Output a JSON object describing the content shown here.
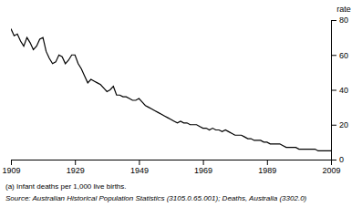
{
  "chart_data": {
    "type": "line",
    "ylabel": "rate",
    "annotations": [
      "(a) Infant deaths per 1,000 live births.",
      "Source: Australian Historical Population Statistics (3105.0.65.001); Deaths, Australia (3302.0)"
    ],
    "x": [
      1909,
      1910,
      1911,
      1912,
      1913,
      1914,
      1915,
      1916,
      1917,
      1918,
      1919,
      1920,
      1921,
      1922,
      1923,
      1924,
      1925,
      1926,
      1927,
      1928,
      1929,
      1930,
      1931,
      1932,
      1933,
      1934,
      1935,
      1936,
      1937,
      1938,
      1939,
      1940,
      1941,
      1942,
      1943,
      1944,
      1945,
      1946,
      1947,
      1948,
      1949,
      1950,
      1951,
      1952,
      1953,
      1954,
      1955,
      1956,
      1957,
      1958,
      1959,
      1960,
      1961,
      1962,
      1963,
      1964,
      1965,
      1966,
      1967,
      1968,
      1969,
      1970,
      1971,
      1972,
      1973,
      1974,
      1975,
      1976,
      1977,
      1978,
      1979,
      1980,
      1981,
      1982,
      1983,
      1984,
      1985,
      1986,
      1987,
      1988,
      1989,
      1990,
      1991,
      1992,
      1993,
      1994,
      1995,
      1996,
      1997,
      1998,
      1999,
      2000,
      2001,
      2002,
      2003,
      2004,
      2005,
      2006,
      2007,
      2008,
      2009
    ],
    "values": [
      75,
      71,
      72,
      68,
      65,
      70,
      67,
      63,
      65,
      69,
      70,
      62,
      58,
      55,
      56,
      60,
      59,
      55,
      57,
      60,
      60,
      55,
      52,
      48,
      44,
      46,
      45,
      44,
      43,
      41,
      39,
      40,
      42,
      37,
      37,
      36,
      36,
      35,
      34,
      34,
      35,
      33,
      31,
      30,
      29,
      28,
      27,
      26,
      25,
      24,
      23,
      22,
      21,
      22,
      21,
      21,
      20,
      20,
      20,
      19,
      18,
      18,
      17,
      18,
      17,
      17,
      16,
      17,
      16,
      15,
      14,
      14,
      14,
      13,
      12,
      12,
      11,
      11,
      11,
      10,
      10,
      9,
      9,
      9,
      9,
      8,
      7,
      7,
      7,
      7,
      6,
      6,
      6,
      6,
      6,
      6,
      5,
      5,
      5,
      5,
      5
    ],
    "color": "#000000",
    "xlim": [
      1909,
      2009
    ],
    "ylim": [
      0,
      80
    ],
    "xticks": [
      1909,
      1929,
      1949,
      1969,
      1989,
      2009
    ],
    "yticks": [
      0,
      20,
      40,
      60,
      80
    ],
    "grid": false
  }
}
